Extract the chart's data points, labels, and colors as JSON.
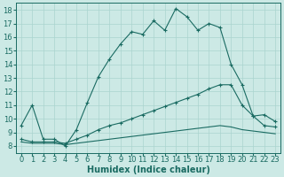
{
  "bg_color": "#cce9e5",
  "grid_color": "#aad4cf",
  "line_color": "#1a6b62",
  "xlabel": "Humidex (Indice chaleur)",
  "xlabel_fontsize": 7,
  "tick_fontsize": 6,
  "xlim": [
    -0.5,
    23.5
  ],
  "ylim": [
    7.5,
    18.5
  ],
  "yticks": [
    8,
    9,
    10,
    11,
    12,
    13,
    14,
    15,
    16,
    17,
    18
  ],
  "xticks": [
    0,
    1,
    2,
    3,
    4,
    5,
    6,
    7,
    8,
    9,
    10,
    11,
    12,
    13,
    14,
    15,
    16,
    17,
    18,
    19,
    20,
    21,
    22,
    23
  ],
  "line1_x": [
    0,
    1,
    2,
    3,
    4,
    5,
    6,
    7,
    8,
    9,
    10,
    11,
    12,
    13,
    14,
    15,
    16,
    17,
    18,
    19,
    20,
    21,
    22,
    23
  ],
  "line1_y": [
    9.5,
    11.0,
    8.5,
    8.5,
    8.0,
    9.2,
    11.2,
    13.1,
    14.4,
    15.5,
    16.4,
    16.2,
    17.2,
    16.5,
    18.1,
    17.5,
    16.5,
    17.0,
    16.7,
    14.0,
    12.5,
    10.2,
    10.3,
    9.8
  ],
  "line2_x": [
    0,
    1,
    2,
    3,
    4,
    5,
    6,
    7,
    8,
    9,
    10,
    11,
    12,
    13,
    14,
    15,
    16,
    17,
    18,
    19,
    20,
    21,
    22,
    23
  ],
  "line2_y": [
    8.5,
    8.3,
    8.3,
    8.3,
    8.2,
    8.5,
    8.8,
    9.2,
    9.5,
    9.7,
    10.0,
    10.3,
    10.6,
    10.9,
    11.2,
    11.5,
    11.8,
    12.2,
    12.5,
    12.5,
    11.0,
    10.2,
    9.5,
    9.4
  ],
  "line3_x": [
    0,
    1,
    2,
    3,
    4,
    5,
    6,
    7,
    8,
    9,
    10,
    11,
    12,
    13,
    14,
    15,
    16,
    17,
    18,
    19,
    20,
    21,
    22,
    23
  ],
  "line3_y": [
    8.3,
    8.2,
    8.2,
    8.2,
    8.1,
    8.2,
    8.3,
    8.4,
    8.5,
    8.6,
    8.7,
    8.8,
    8.9,
    9.0,
    9.1,
    9.2,
    9.3,
    9.4,
    9.5,
    9.4,
    9.2,
    9.1,
    9.0,
    8.9
  ]
}
